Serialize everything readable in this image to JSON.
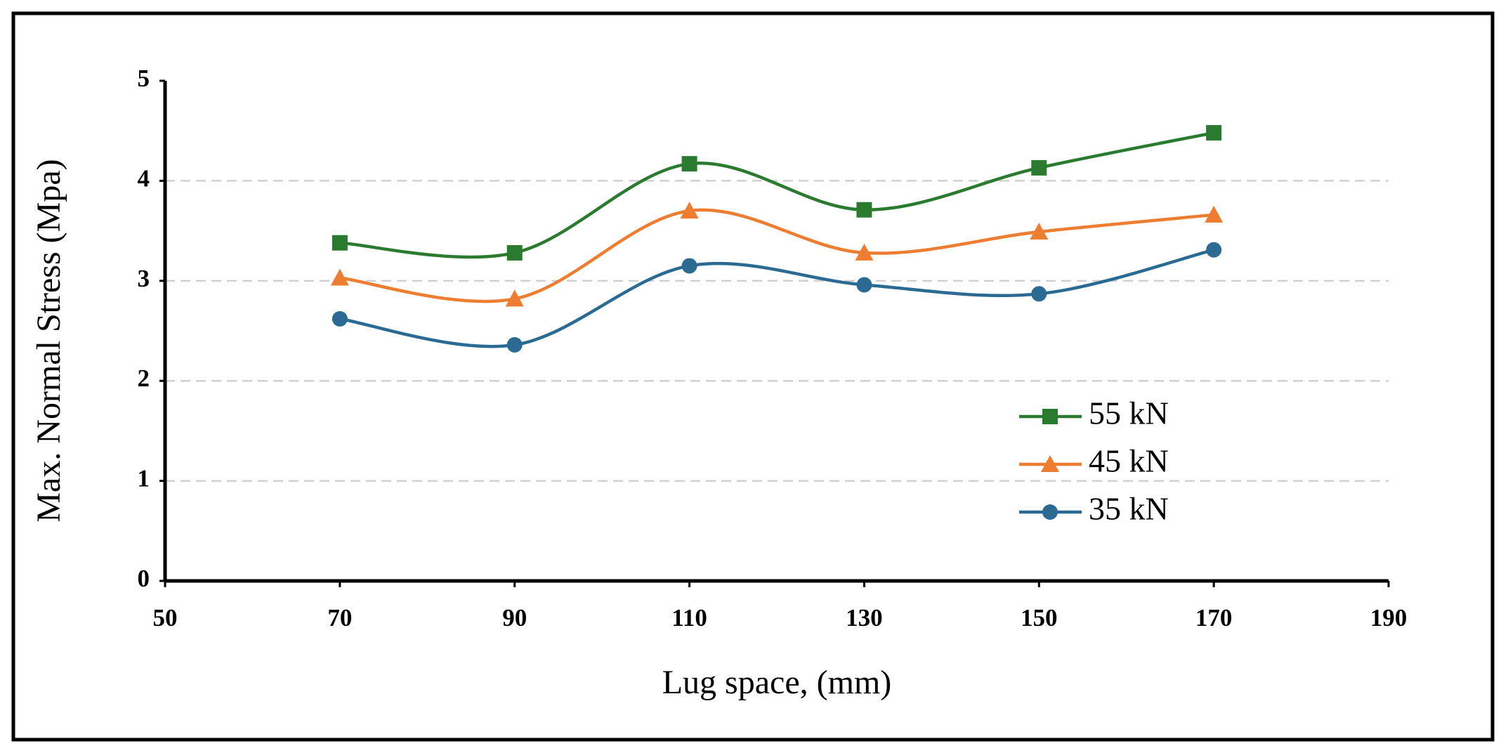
{
  "chart_data": {
    "type": "line",
    "x_label": "Lug space, (mm)",
    "y_label": "Max. Normal Stress (Mpa)",
    "x": [
      70,
      90,
      110,
      130,
      150,
      170
    ],
    "series": [
      {
        "name": "55 kN",
        "color": "#2a7a30",
        "marker": "square",
        "values": [
          3.38,
          3.28,
          4.17,
          3.71,
          4.13,
          4.48
        ]
      },
      {
        "name": "45 kN",
        "color": "#ed7d31",
        "marker": "triangle",
        "values": [
          3.03,
          2.82,
          3.7,
          3.28,
          3.49,
          3.66
        ]
      },
      {
        "name": "35 kN",
        "color": "#2b6b93",
        "marker": "circle",
        "values": [
          2.62,
          2.36,
          3.15,
          2.96,
          2.87,
          3.31
        ]
      }
    ],
    "xlim": [
      50,
      190
    ],
    "xticks": [
      50,
      70,
      90,
      110,
      130,
      150,
      170,
      190
    ],
    "ylim": [
      0,
      5
    ],
    "yticks": [
      0,
      1,
      2,
      3,
      4,
      5
    ],
    "grid": true,
    "smooth": true
  }
}
